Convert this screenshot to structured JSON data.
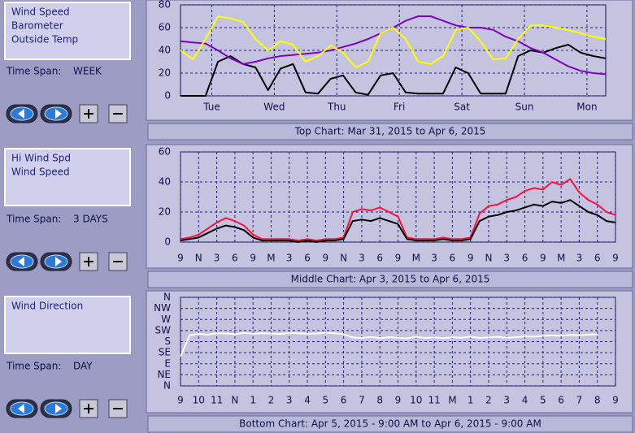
{
  "chart_data": [
    {
      "type": "line",
      "title": "Top Chart:  Mar 31, 2015  to  Apr 6, 2015",
      "time_span_label": "Time Span:",
      "time_span": "WEEK",
      "x": [
        0,
        0.2,
        0.4,
        0.6,
        0.8,
        1,
        1.2,
        1.4,
        1.6,
        1.8,
        2,
        2.2,
        2.4,
        2.6,
        2.8,
        3,
        3.2,
        3.4,
        3.6,
        3.8,
        4,
        4.2,
        4.4,
        4.6,
        4.8,
        5,
        5.2,
        5.4,
        5.6,
        5.8,
        6,
        6.2,
        6.4,
        6.6,
        6.8
      ],
      "xlim": [
        0,
        6.8
      ],
      "ylim": [
        0,
        80
      ],
      "yticks": [
        0,
        20,
        40,
        60,
        80
      ],
      "xticks": [
        {
          "value": 0.5,
          "label": "Tue"
        },
        {
          "value": 1.5,
          "label": "Wed"
        },
        {
          "value": 2.5,
          "label": "Thu"
        },
        {
          "value": 3.5,
          "label": "Fri"
        },
        {
          "value": 4.5,
          "label": "Sat"
        },
        {
          "value": 5.5,
          "label": "Sun"
        },
        {
          "value": 6.5,
          "label": "Mon"
        }
      ],
      "grid": true,
      "series": [
        {
          "name": "Wind Speed",
          "color": "#000000",
          "values": [
            0,
            0,
            0,
            30,
            35,
            28,
            25,
            5,
            24,
            28,
            3,
            2,
            15,
            18,
            3,
            1,
            18,
            20,
            3,
            2,
            2,
            2,
            25,
            20,
            2,
            2,
            2,
            35,
            40,
            38,
            42,
            45,
            38,
            35,
            33
          ]
        },
        {
          "name": "Barometer",
          "color": "#8000c0",
          "values": [
            48,
            47,
            46,
            40,
            33,
            28,
            30,
            33,
            35,
            36,
            37,
            38,
            40,
            43,
            46,
            50,
            55,
            60,
            66,
            70,
            70,
            66,
            62,
            60,
            60,
            58,
            52,
            48,
            42,
            38,
            32,
            26,
            22,
            20,
            19
          ]
        },
        {
          "name": "Outside Temp",
          "color": "#ffff00",
          "values": [
            40,
            32,
            50,
            70,
            68,
            65,
            50,
            40,
            48,
            45,
            30,
            35,
            44,
            38,
            25,
            30,
            55,
            60,
            50,
            30,
            28,
            35,
            58,
            60,
            48,
            32,
            33,
            50,
            62,
            62,
            60,
            58,
            55,
            52,
            50
          ]
        }
      ]
    },
    {
      "type": "line",
      "title": "Middle Chart:  Apr 3, 2015  to  Apr 6, 2015",
      "time_span_label": "Time Span:",
      "time_span": "3 DAYS",
      "x": [
        0,
        1.5,
        3,
        4.5,
        6,
        7.5,
        9,
        10.5,
        12,
        13.5,
        15,
        16.5,
        18,
        19.5,
        21,
        22.5,
        24,
        25.5,
        27,
        28.5,
        30,
        31.5,
        33,
        34.5,
        36,
        37.5,
        39,
        40.5,
        42,
        43.5,
        45,
        46.5,
        48,
        49.5,
        51,
        52.5,
        54,
        55.5,
        57,
        58.5,
        60,
        61.5,
        63,
        64.5,
        66,
        67.5,
        69,
        70.5,
        72
      ],
      "xlim": [
        0,
        72
      ],
      "ylim": [
        0,
        60
      ],
      "yticks": [
        0,
        20,
        40,
        60
      ],
      "xticks": [
        {
          "value": 0,
          "label": "9"
        },
        {
          "value": 3,
          "label": "N"
        },
        {
          "value": 6,
          "label": "3"
        },
        {
          "value": 9,
          "label": "6"
        },
        {
          "value": 12,
          "label": "9"
        },
        {
          "value": 15,
          "label": "M"
        },
        {
          "value": 18,
          "label": "3"
        },
        {
          "value": 21,
          "label": "6"
        },
        {
          "value": 24,
          "label": "9"
        },
        {
          "value": 27,
          "label": "N"
        },
        {
          "value": 30,
          "label": "3"
        },
        {
          "value": 33,
          "label": "6"
        },
        {
          "value": 36,
          "label": "9"
        },
        {
          "value": 39,
          "label": "M"
        },
        {
          "value": 42,
          "label": "3"
        },
        {
          "value": 45,
          "label": "6"
        },
        {
          "value": 48,
          "label": "9"
        },
        {
          "value": 51,
          "label": "N"
        },
        {
          "value": 54,
          "label": "3"
        },
        {
          "value": 57,
          "label": "6"
        },
        {
          "value": 60,
          "label": "9"
        },
        {
          "value": 63,
          "label": "M"
        },
        {
          "value": 66,
          "label": "3"
        },
        {
          "value": 69,
          "label": "6"
        },
        {
          "value": 72,
          "label": "9"
        }
      ],
      "grid": true,
      "series": [
        {
          "name": "Hi Wind Spd",
          "color": "#ff1040",
          "values": [
            2,
            3,
            5,
            9,
            13,
            16,
            14,
            11,
            5,
            2,
            2,
            2,
            2,
            1,
            2,
            1,
            2,
            2,
            3,
            20,
            22,
            21,
            23,
            20,
            17,
            3,
            2,
            2,
            2,
            3,
            2,
            2,
            3,
            19,
            24,
            25,
            28,
            30,
            34,
            36,
            35,
            40,
            38,
            42,
            33,
            28,
            25,
            20,
            18
          ]
        },
        {
          "name": "Wind Speed",
          "color": "#000000",
          "values": [
            1,
            2,
            3,
            6,
            9,
            11,
            10,
            8,
            3,
            1,
            1,
            1,
            1,
            0,
            1,
            0,
            1,
            1,
            2,
            14,
            15,
            14,
            16,
            14,
            12,
            2,
            1,
            1,
            1,
            2,
            1,
            1,
            2,
            14,
            17,
            18,
            20,
            21,
            23,
            25,
            24,
            27,
            26,
            28,
            24,
            20,
            18,
            14,
            13
          ]
        }
      ]
    },
    {
      "type": "line",
      "title": "Bottom Chart:  Apr 5, 2015 - 9:00 AM  to  Apr 6, 2015 - 9:00 AM",
      "time_span_label": "Time Span:",
      "time_span": "DAY",
      "x": [
        0,
        0.5,
        1,
        1.5,
        2,
        2.5,
        3,
        3.5,
        4,
        4.5,
        5,
        5.5,
        6,
        6.5,
        7,
        7.5,
        8,
        8.5,
        9,
        9.5,
        10,
        10.5,
        11,
        11.5,
        12,
        12.5,
        13,
        13.5,
        14,
        14.5,
        15,
        15.5,
        16,
        16.5,
        17,
        17.5,
        18,
        18.5,
        19,
        19.5,
        20,
        20.5,
        21,
        21.5,
        22,
        22.5,
        23
      ],
      "xlim": [
        0,
        24
      ],
      "ylim": [
        0,
        360
      ],
      "yticks": [
        {
          "value": 0,
          "label": "N"
        },
        {
          "value": 45,
          "label": "NE"
        },
        {
          "value": 90,
          "label": "E"
        },
        {
          "value": 135,
          "label": "SE"
        },
        {
          "value": 180,
          "label": "S"
        },
        {
          "value": 225,
          "label": "SW"
        },
        {
          "value": 270,
          "label": "W"
        },
        {
          "value": 315,
          "label": "NW"
        },
        {
          "value": 360,
          "label": "N"
        }
      ],
      "xticks": [
        {
          "value": 0,
          "label": "9"
        },
        {
          "value": 1,
          "label": "10"
        },
        {
          "value": 2,
          "label": "11"
        },
        {
          "value": 3,
          "label": "N"
        },
        {
          "value": 4,
          "label": "1"
        },
        {
          "value": 5,
          "label": "2"
        },
        {
          "value": 6,
          "label": "3"
        },
        {
          "value": 7,
          "label": "4"
        },
        {
          "value": 8,
          "label": "5"
        },
        {
          "value": 9,
          "label": "6"
        },
        {
          "value": 10,
          "label": "7"
        },
        {
          "value": 11,
          "label": "8"
        },
        {
          "value": 12,
          "label": "9"
        },
        {
          "value": 13,
          "label": "10"
        },
        {
          "value": 14,
          "label": "11"
        },
        {
          "value": 15,
          "label": "M"
        },
        {
          "value": 16,
          "label": "1"
        },
        {
          "value": 17,
          "label": "2"
        },
        {
          "value": 18,
          "label": "3"
        },
        {
          "value": 19,
          "label": "4"
        },
        {
          "value": 20,
          "label": "5"
        },
        {
          "value": 21,
          "label": "6"
        },
        {
          "value": 22,
          "label": "7"
        },
        {
          "value": 23,
          "label": "8"
        },
        {
          "value": 24,
          "label": "9"
        }
      ],
      "grid": true,
      "series": [
        {
          "name": "Wind Direction",
          "color": "#ffffff",
          "values": [
            120,
            205,
            212,
            208,
            214,
            213,
            210,
            215,
            212,
            214,
            213,
            211,
            215,
            214,
            212,
            213,
            216,
            214,
            210,
            197,
            195,
            199,
            194,
            198,
            196,
            193,
            199,
            195,
            197,
            194,
            198,
            196,
            200,
            195,
            197,
            199,
            196,
            198,
            201,
            200,
            203,
            205,
            204,
            207,
            206,
            208,
            210
          ]
        }
      ]
    }
  ]
}
